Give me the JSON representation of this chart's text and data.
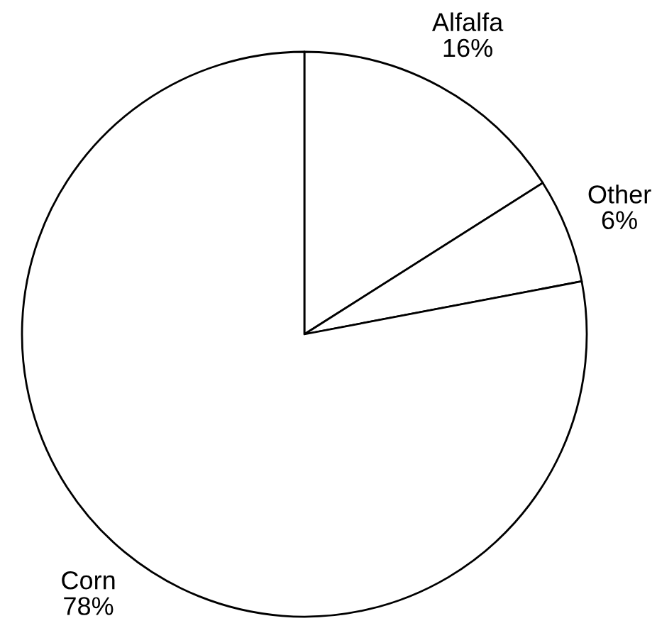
{
  "chart_data": {
    "type": "pie",
    "categories": [
      "Alfalfa",
      "Other",
      "Corn"
    ],
    "values": [
      16,
      6,
      78
    ],
    "colors": [
      "#ffffff",
      "#ffffff",
      "#ffffff"
    ],
    "value_labels": [
      "16%",
      "6%",
      "78%"
    ]
  }
}
